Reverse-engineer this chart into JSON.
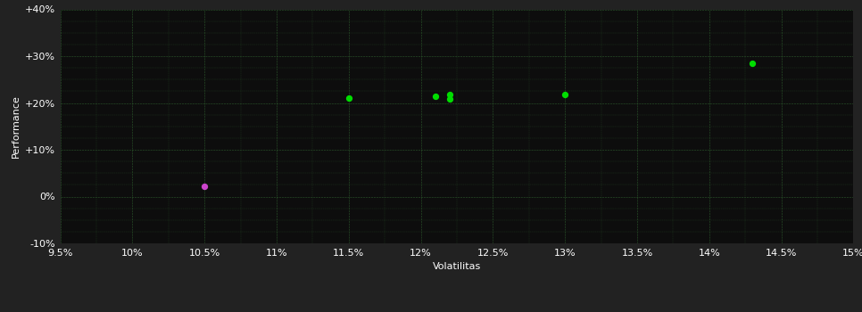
{
  "fig_bg_color": "#222222",
  "plot_bg_color": "#0d0d0d",
  "grid_color": "#2d5a2d",
  "text_color": "#ffffff",
  "xlabel": "Volatilitas",
  "ylabel": "Performance",
  "xlim": [
    0.095,
    0.15
  ],
  "ylim": [
    -0.1,
    0.4
  ],
  "xticks": [
    0.095,
    0.1,
    0.105,
    0.11,
    0.115,
    0.12,
    0.125,
    0.13,
    0.135,
    0.14,
    0.145,
    0.15
  ],
  "yticks": [
    -0.1,
    0.0,
    0.1,
    0.2,
    0.3,
    0.4
  ],
  "xtick_labels": [
    "9.5%",
    "10%",
    "10.5%",
    "11%",
    "11.5%",
    "12%",
    "12.5%",
    "13%",
    "13.5%",
    "14%",
    "14.5%",
    "15%"
  ],
  "ytick_labels": [
    "-10%",
    "0%",
    "+10%",
    "+20%",
    "+30%",
    "+40%"
  ],
  "green_points": [
    [
      0.115,
      0.21
    ],
    [
      0.121,
      0.214
    ],
    [
      0.122,
      0.218
    ],
    [
      0.122,
      0.209
    ],
    [
      0.13,
      0.218
    ],
    [
      0.143,
      0.285
    ]
  ],
  "purple_points": [
    [
      0.105,
      0.022
    ]
  ],
  "point_size": 18,
  "green_color": "#00dd00",
  "purple_color": "#cc44cc",
  "xlabel_fontsize": 8,
  "ylabel_fontsize": 8,
  "tick_fontsize": 8
}
